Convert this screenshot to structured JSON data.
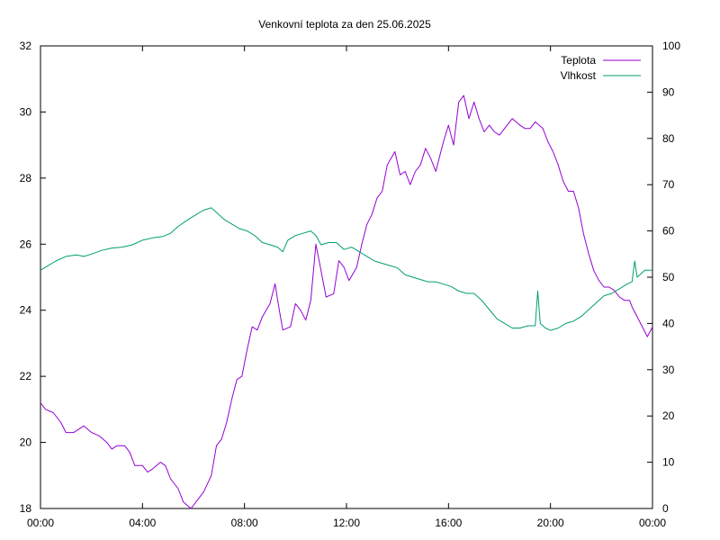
{
  "chart_data": {
    "type": "line",
    "title": "Venkovní teplota za den 25.06.2025",
    "xlabel": "",
    "ylabel": "",
    "y2label": "",
    "grid": false,
    "legend_position": "top-right",
    "xlim": [
      0,
      24
    ],
    "ylim": [
      18,
      32
    ],
    "y2lim": [
      0,
      100
    ],
    "x_ticks": [
      {
        "value": 0,
        "label": "00:00"
      },
      {
        "value": 4,
        "label": "04:00"
      },
      {
        "value": 8,
        "label": "08:00"
      },
      {
        "value": 12,
        "label": "12:00"
      },
      {
        "value": 16,
        "label": "16:00"
      },
      {
        "value": 20,
        "label": "20:00"
      },
      {
        "value": 24,
        "label": "00:00"
      }
    ],
    "y_ticks": [
      18,
      20,
      22,
      24,
      26,
      28,
      30,
      32
    ],
    "y2_ticks": [
      0,
      10,
      20,
      30,
      40,
      50,
      60,
      70,
      80,
      90,
      100
    ],
    "series": [
      {
        "name": "Teplota",
        "axis": "left",
        "color": "#9400d3",
        "points": [
          [
            0.0,
            21.2
          ],
          [
            0.2,
            21.0
          ],
          [
            0.5,
            20.9
          ],
          [
            0.8,
            20.6
          ],
          [
            1.0,
            20.3
          ],
          [
            1.3,
            20.3
          ],
          [
            1.5,
            20.4
          ],
          [
            1.7,
            20.5
          ],
          [
            2.0,
            20.3
          ],
          [
            2.3,
            20.2
          ],
          [
            2.6,
            20.0
          ],
          [
            2.8,
            19.8
          ],
          [
            3.0,
            19.9
          ],
          [
            3.3,
            19.9
          ],
          [
            3.5,
            19.7
          ],
          [
            3.7,
            19.3
          ],
          [
            4.0,
            19.3
          ],
          [
            4.2,
            19.1
          ],
          [
            4.4,
            19.2
          ],
          [
            4.7,
            19.4
          ],
          [
            4.9,
            19.3
          ],
          [
            5.1,
            18.9
          ],
          [
            5.4,
            18.6
          ],
          [
            5.6,
            18.2
          ],
          [
            5.9,
            18.0
          ],
          [
            6.1,
            18.2
          ],
          [
            6.4,
            18.5
          ],
          [
            6.7,
            19.0
          ],
          [
            6.9,
            19.9
          ],
          [
            7.1,
            20.1
          ],
          [
            7.3,
            20.6
          ],
          [
            7.5,
            21.3
          ],
          [
            7.7,
            21.9
          ],
          [
            7.9,
            22.0
          ],
          [
            8.1,
            22.8
          ],
          [
            8.3,
            23.5
          ],
          [
            8.5,
            23.4
          ],
          [
            8.7,
            23.8
          ],
          [
            9.0,
            24.2
          ],
          [
            9.2,
            24.8
          ],
          [
            9.3,
            24.3
          ],
          [
            9.5,
            23.4
          ],
          [
            9.8,
            23.5
          ],
          [
            10.0,
            24.2
          ],
          [
            10.2,
            24.0
          ],
          [
            10.4,
            23.7
          ],
          [
            10.6,
            24.3
          ],
          [
            10.8,
            26.0
          ],
          [
            11.0,
            25.2
          ],
          [
            11.2,
            24.4
          ],
          [
            11.5,
            24.5
          ],
          [
            11.7,
            25.5
          ],
          [
            11.9,
            25.3
          ],
          [
            12.1,
            24.9
          ],
          [
            12.4,
            25.3
          ],
          [
            12.6,
            26.0
          ],
          [
            12.8,
            26.6
          ],
          [
            13.0,
            26.9
          ],
          [
            13.2,
            27.4
          ],
          [
            13.4,
            27.6
          ],
          [
            13.6,
            28.4
          ],
          [
            13.9,
            28.8
          ],
          [
            14.1,
            28.1
          ],
          [
            14.3,
            28.2
          ],
          [
            14.5,
            27.8
          ],
          [
            14.7,
            28.2
          ],
          [
            14.9,
            28.4
          ],
          [
            15.1,
            28.9
          ],
          [
            15.3,
            28.6
          ],
          [
            15.5,
            28.2
          ],
          [
            15.8,
            29.1
          ],
          [
            16.0,
            29.6
          ],
          [
            16.2,
            29.0
          ],
          [
            16.4,
            30.3
          ],
          [
            16.6,
            30.5
          ],
          [
            16.8,
            29.8
          ],
          [
            17.0,
            30.3
          ],
          [
            17.2,
            29.8
          ],
          [
            17.4,
            29.4
          ],
          [
            17.6,
            29.6
          ],
          [
            17.8,
            29.4
          ],
          [
            18.0,
            29.3
          ],
          [
            18.3,
            29.6
          ],
          [
            18.5,
            29.8
          ],
          [
            18.8,
            29.6
          ],
          [
            19.0,
            29.5
          ],
          [
            19.2,
            29.5
          ],
          [
            19.4,
            29.7
          ],
          [
            19.7,
            29.5
          ],
          [
            19.9,
            29.1
          ],
          [
            20.1,
            28.8
          ],
          [
            20.3,
            28.4
          ],
          [
            20.5,
            27.9
          ],
          [
            20.7,
            27.6
          ],
          [
            20.9,
            27.6
          ],
          [
            21.1,
            27.1
          ],
          [
            21.3,
            26.3
          ],
          [
            21.5,
            25.7
          ],
          [
            21.7,
            25.2
          ],
          [
            21.9,
            24.9
          ],
          [
            22.1,
            24.7
          ],
          [
            22.3,
            24.7
          ],
          [
            22.5,
            24.6
          ],
          [
            22.7,
            24.4
          ],
          [
            22.9,
            24.3
          ],
          [
            23.1,
            24.3
          ],
          [
            23.2,
            24.1
          ],
          [
            23.4,
            23.8
          ],
          [
            23.6,
            23.5
          ],
          [
            23.8,
            23.2
          ],
          [
            24.0,
            23.5
          ]
        ]
      },
      {
        "name": "Vlhkost",
        "axis": "right",
        "color": "#009e73",
        "points": [
          [
            0.0,
            51.5
          ],
          [
            0.3,
            52.5
          ],
          [
            0.6,
            53.5
          ],
          [
            1.0,
            54.5
          ],
          [
            1.4,
            54.8
          ],
          [
            1.7,
            54.5
          ],
          [
            2.0,
            55.0
          ],
          [
            2.4,
            55.8
          ],
          [
            2.8,
            56.3
          ],
          [
            3.2,
            56.5
          ],
          [
            3.6,
            57.0
          ],
          [
            4.0,
            58.0
          ],
          [
            4.4,
            58.5
          ],
          [
            4.8,
            58.8
          ],
          [
            5.1,
            59.5
          ],
          [
            5.4,
            61.0
          ],
          [
            5.8,
            62.5
          ],
          [
            6.1,
            63.5
          ],
          [
            6.4,
            64.5
          ],
          [
            6.7,
            65.0
          ],
          [
            6.9,
            64.0
          ],
          [
            7.2,
            62.5
          ],
          [
            7.5,
            61.5
          ],
          [
            7.8,
            60.5
          ],
          [
            8.1,
            60.0
          ],
          [
            8.4,
            59.0
          ],
          [
            8.7,
            57.5
          ],
          [
            9.0,
            57.0
          ],
          [
            9.3,
            56.5
          ],
          [
            9.5,
            55.5
          ],
          [
            9.7,
            58.0
          ],
          [
            10.0,
            59.0
          ],
          [
            10.3,
            59.5
          ],
          [
            10.6,
            60.0
          ],
          [
            10.8,
            59.0
          ],
          [
            11.0,
            57.0
          ],
          [
            11.3,
            57.5
          ],
          [
            11.6,
            57.5
          ],
          [
            11.9,
            56.0
          ],
          [
            12.2,
            56.5
          ],
          [
            12.5,
            55.5
          ],
          [
            12.8,
            54.5
          ],
          [
            13.1,
            53.5
          ],
          [
            13.4,
            53.0
          ],
          [
            13.7,
            52.5
          ],
          [
            14.0,
            52.0
          ],
          [
            14.3,
            50.5
          ],
          [
            14.6,
            50.0
          ],
          [
            14.9,
            49.5
          ],
          [
            15.2,
            49.0
          ],
          [
            15.5,
            49.0
          ],
          [
            15.8,
            48.5
          ],
          [
            16.1,
            48.0
          ],
          [
            16.4,
            47.0
          ],
          [
            16.7,
            46.5
          ],
          [
            17.0,
            46.5
          ],
          [
            17.3,
            45.0
          ],
          [
            17.6,
            43.0
          ],
          [
            17.9,
            41.0
          ],
          [
            18.2,
            40.0
          ],
          [
            18.5,
            39.0
          ],
          [
            18.8,
            39.0
          ],
          [
            19.1,
            39.5
          ],
          [
            19.4,
            39.5
          ],
          [
            19.5,
            47.0
          ],
          [
            19.6,
            40.0
          ],
          [
            19.8,
            39.0
          ],
          [
            20.0,
            38.5
          ],
          [
            20.3,
            39.0
          ],
          [
            20.6,
            40.0
          ],
          [
            20.9,
            40.5
          ],
          [
            21.2,
            41.5
          ],
          [
            21.5,
            43.0
          ],
          [
            21.8,
            44.5
          ],
          [
            22.1,
            46.0
          ],
          [
            22.4,
            46.5
          ],
          [
            22.7,
            47.5
          ],
          [
            23.0,
            48.5
          ],
          [
            23.2,
            49.0
          ],
          [
            23.3,
            53.5
          ],
          [
            23.4,
            50.0
          ],
          [
            23.7,
            51.5
          ],
          [
            24.0,
            51.5
          ]
        ]
      }
    ]
  }
}
